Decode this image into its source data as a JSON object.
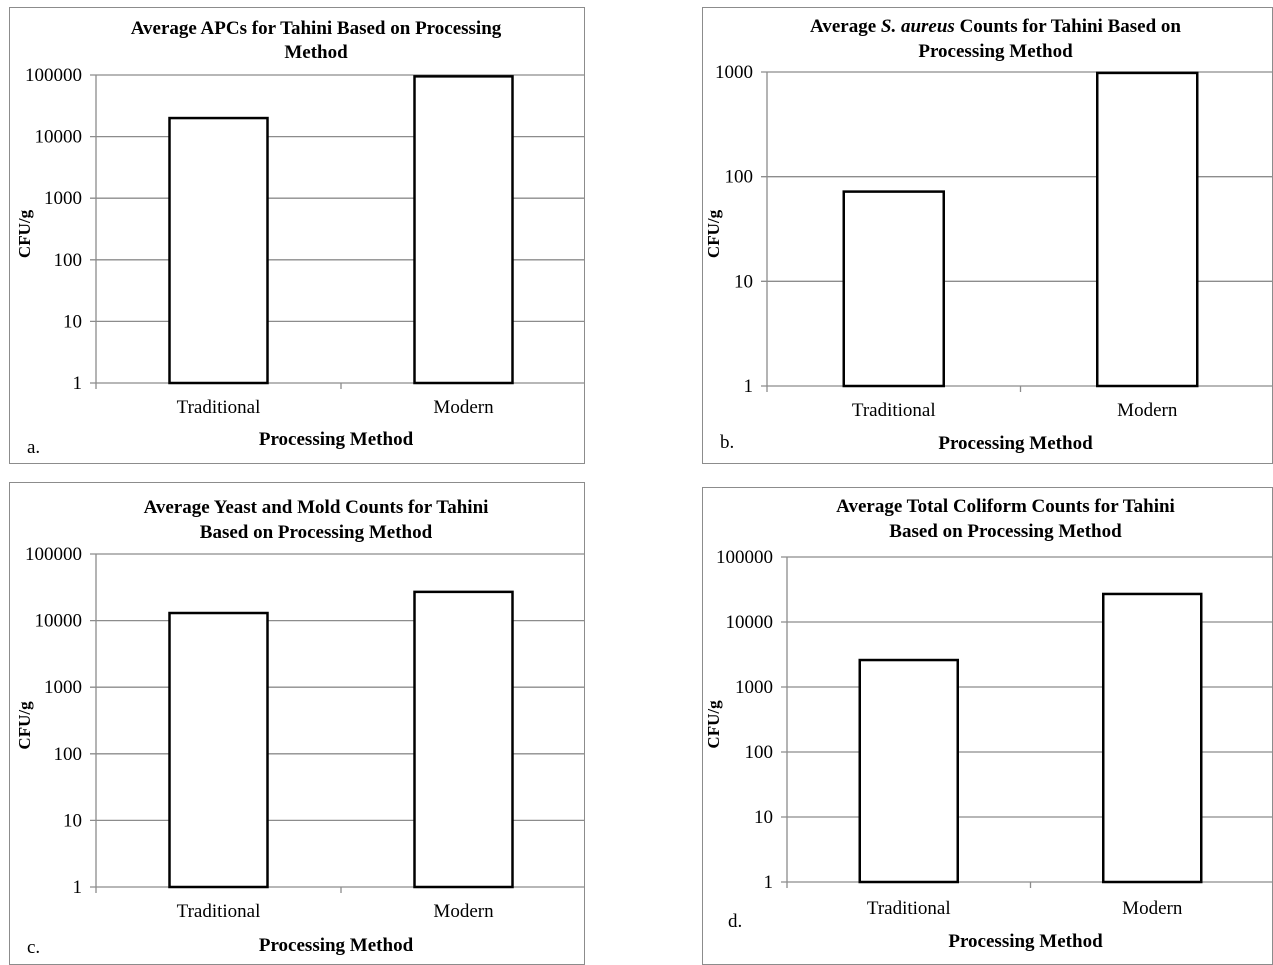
{
  "chart_data": [
    {
      "id": "a",
      "type": "bar",
      "panel_label": "a.",
      "title": [
        "Average APCs for Tahini Based on Processing",
        "Method"
      ],
      "xlabel": "Processing Method",
      "ylabel": "CFU/g",
      "yscale": "log",
      "ylim": [
        1,
        100000
      ],
      "yticks": [
        "1",
        "10",
        "100",
        "1000",
        "10000",
        "100000"
      ],
      "categories": [
        "Traditional",
        "Modern"
      ],
      "values": [
        20000,
        95000
      ],
      "grid": true
    },
    {
      "id": "b",
      "type": "bar",
      "panel_label": "b.",
      "title": [
        [
          {
            "t": "Average "
          },
          {
            "t": "S. aureus",
            "i": true
          },
          {
            "t": " Counts for Tahini Based on"
          }
        ],
        [
          {
            "t": "Processing Method"
          }
        ]
      ],
      "xlabel": "Processing Method",
      "ylabel": "CFU/g",
      "yscale": "log",
      "ylim": [
        1,
        1000
      ],
      "yticks": [
        "1",
        "10",
        "100",
        "1000"
      ],
      "categories": [
        "Traditional",
        "Modern"
      ],
      "values": [
        72,
        980
      ],
      "grid": true
    },
    {
      "id": "c",
      "type": "bar",
      "panel_label": "c.",
      "title": [
        "Average Yeast and Mold Counts for Tahini",
        "Based on Processing Method"
      ],
      "xlabel": "Processing Method",
      "ylabel": "CFU/g",
      "yscale": "log",
      "ylim": [
        1,
        100000
      ],
      "yticks": [
        "1",
        "10",
        "100",
        "1000",
        "10000",
        "100000"
      ],
      "categories": [
        "Traditional",
        "Modern"
      ],
      "values": [
        13000,
        27000
      ],
      "grid": true
    },
    {
      "id": "d",
      "type": "bar",
      "panel_label": "d.",
      "title": [
        "Average Total Coliform Counts for Tahini",
        "Based on Processing Method"
      ],
      "xlabel": "Processing Method",
      "ylabel": "CFU/g",
      "yscale": "log",
      "ylim": [
        1,
        100000
      ],
      "yticks": [
        "1",
        "10",
        "100",
        "1000",
        "10000",
        "100000"
      ],
      "categories": [
        "Traditional",
        "Modern"
      ],
      "values": [
        2600,
        27000
      ],
      "grid": true
    }
  ]
}
